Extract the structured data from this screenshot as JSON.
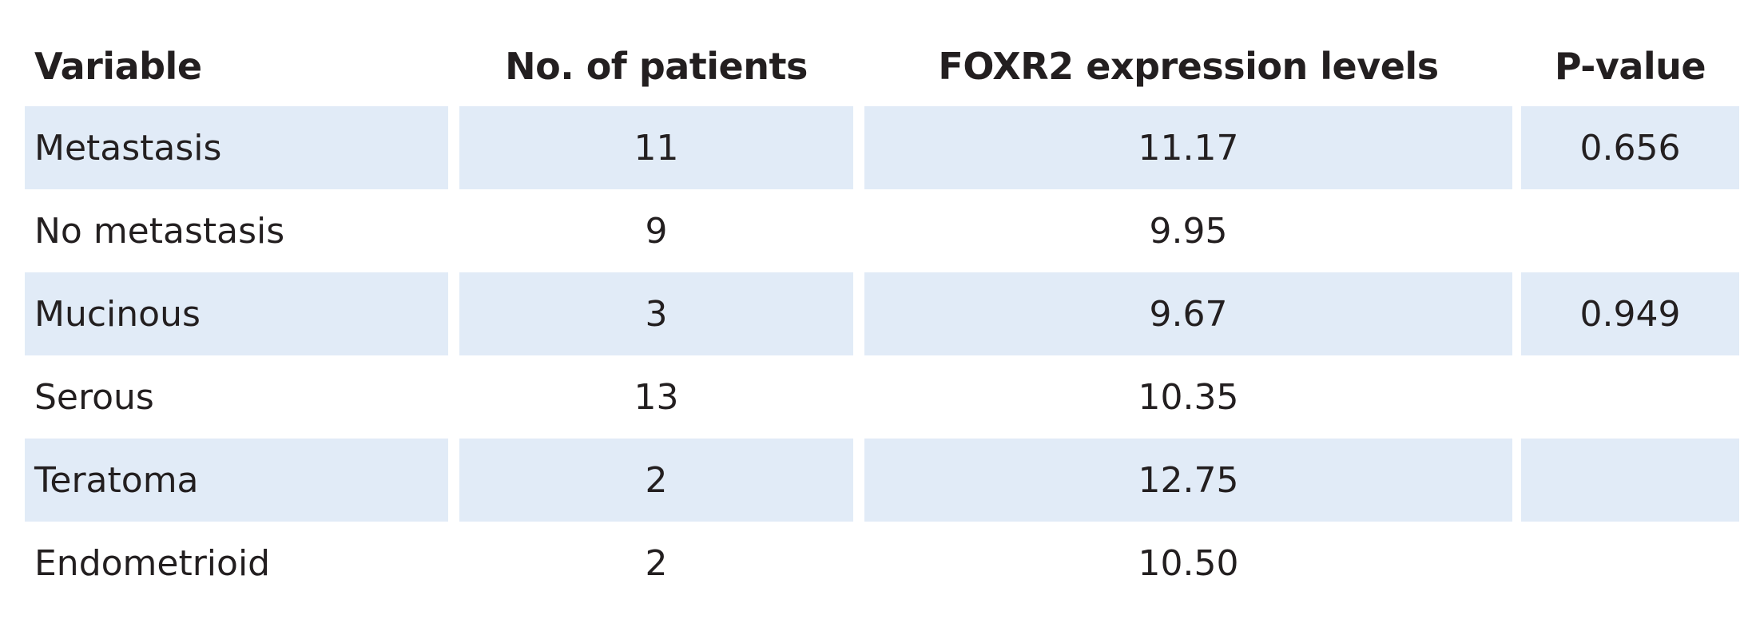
{
  "table": {
    "header": [
      "Variable",
      "No. of patients",
      "FOXR2 expression levels",
      "P-value"
    ],
    "rows": [
      {
        "variable": "Metastasis",
        "patients": "11",
        "expression": "11.17",
        "p_value": "0.656"
      },
      {
        "variable": "No metastasis",
        "patients": "9",
        "expression": "9.95"
      },
      {
        "variable": "Mucinous",
        "patients": "3",
        "expression": "9.67",
        "p_value": "0.949"
      },
      {
        "variable": "Serous",
        "patients": "13",
        "expression": "10.35"
      },
      {
        "variable": "Teratoma",
        "patients": "2",
        "expression": "12.75"
      },
      {
        "variable": "Endometrioid",
        "patients": "2",
        "expression": "10.50"
      }
    ]
  }
}
